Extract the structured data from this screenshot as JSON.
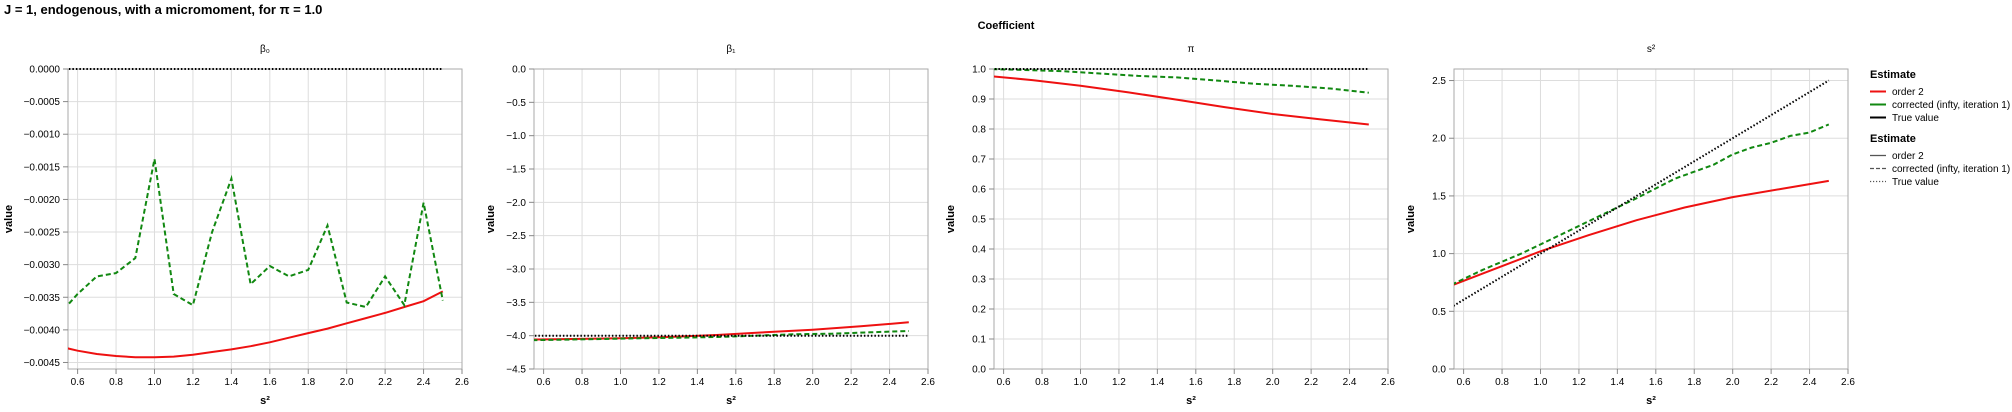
{
  "figure": {
    "title": "J = 1, endogenous, with a micromoment,  for π = 1.0",
    "column_header": "Coefficient"
  },
  "colors": {
    "order2": "#ee1111",
    "corrected": "#118811",
    "true": "#000000"
  },
  "legend": [
    {
      "title": "Estimate",
      "kind": "color",
      "entries": [
        {
          "label": "order 2",
          "color": "#ee1111"
        },
        {
          "label": "corrected (infty, iteration 1)",
          "color": "#118811"
        },
        {
          "label": "True value",
          "color": "#000000"
        }
      ]
    },
    {
      "title": "Estimate",
      "kind": "dash",
      "entries": [
        {
          "label": "order 2",
          "dash": "solid"
        },
        {
          "label": "corrected (infty, iteration 1)",
          "dash": "dashed"
        },
        {
          "label": "True value",
          "dash": "dotted"
        }
      ]
    }
  ],
  "chart_data": [
    {
      "type": "line",
      "title": "β₀",
      "xlabel": "s²",
      "ylabel": "value",
      "xlim": [
        0.55,
        2.6
      ],
      "ylim": [
        -0.0046,
        0.0
      ],
      "xticks": [
        0.6,
        0.8,
        1.0,
        1.2,
        1.4,
        1.6,
        1.8,
        2.0,
        2.2,
        2.4,
        2.6
      ],
      "xtick_labels": [
        "0.6",
        "0.8",
        "1.0",
        "1.2",
        "1.4",
        "1.6",
        "1.8",
        "2.0",
        "2.2",
        "2.4",
        "2.6"
      ],
      "yticks": [
        -0.0045,
        -0.004,
        -0.0035,
        -0.003,
        -0.0025,
        -0.002,
        -0.0015,
        -0.001,
        -0.0005,
        0.0
      ],
      "ytick_labels": [
        "−0.0045",
        "−0.0040",
        "−0.0035",
        "−0.0030",
        "−0.0025",
        "−0.0020",
        "−0.0015",
        "−0.0010",
        "−0.0005",
        "0.0000"
      ],
      "series": [
        {
          "name": "order 2",
          "color": "#ee1111",
          "dash": "solid",
          "x": [
            0.5,
            0.6,
            0.7,
            0.8,
            0.9,
            1.0,
            1.1,
            1.2,
            1.3,
            1.4,
            1.5,
            1.6,
            1.7,
            1.8,
            1.9,
            2.0,
            2.1,
            2.2,
            2.3,
            2.4,
            2.5
          ],
          "y": [
            -0.00425,
            -0.00432,
            -0.00437,
            -0.0044,
            -0.00442,
            -0.00442,
            -0.00441,
            -0.00438,
            -0.00434,
            -0.0043,
            -0.00425,
            -0.00419,
            -0.00412,
            -0.00405,
            -0.00398,
            -0.0039,
            -0.00382,
            -0.00374,
            -0.00365,
            -0.00356,
            -0.00341
          ]
        },
        {
          "name": "corrected (infty, iteration 1)",
          "color": "#118811",
          "dash": "dashed",
          "x": [
            0.5,
            0.6,
            0.7,
            0.8,
            0.9,
            1.0,
            1.1,
            1.2,
            1.3,
            1.4,
            1.5,
            1.6,
            1.7,
            1.8,
            1.9,
            2.0,
            2.1,
            2.2,
            2.3,
            2.4,
            2.5
          ],
          "y": [
            -0.00378,
            -0.00345,
            -0.00318,
            -0.00313,
            -0.0029,
            -0.00138,
            -0.00345,
            -0.00362,
            -0.0025,
            -0.00168,
            -0.0033,
            -0.00302,
            -0.00318,
            -0.00308,
            -0.0024,
            -0.00358,
            -0.00365,
            -0.00318,
            -0.00362,
            -0.00205,
            -0.00355
          ]
        },
        {
          "name": "True value",
          "color": "#000000",
          "dash": "dotted",
          "x": [
            0.5,
            2.5
          ],
          "y": [
            0.0,
            0.0
          ]
        }
      ]
    },
    {
      "type": "line",
      "title": "β₁",
      "xlabel": "s²",
      "ylabel": "value",
      "xlim": [
        0.55,
        2.6
      ],
      "ylim": [
        -4.5,
        0.0
      ],
      "xticks": [
        0.6,
        0.8,
        1.0,
        1.2,
        1.4,
        1.6,
        1.8,
        2.0,
        2.2,
        2.4,
        2.6
      ],
      "xtick_labels": [
        "0.6",
        "0.8",
        "1.0",
        "1.2",
        "1.4",
        "1.6",
        "1.8",
        "2.0",
        "2.2",
        "2.4",
        "2.6"
      ],
      "yticks": [
        -4.5,
        -4.0,
        -3.5,
        -3.0,
        -2.5,
        -2.0,
        -1.5,
        -1.0,
        -0.5,
        0.0
      ],
      "ytick_labels": [
        "−4.5",
        "−4.0",
        "−3.5",
        "−3.0",
        "−2.5",
        "−2.0",
        "−1.5",
        "−1.0",
        "−0.5",
        "0.0"
      ],
      "series": [
        {
          "name": "order 2",
          "color": "#ee1111",
          "dash": "solid",
          "x": [
            0.5,
            0.75,
            1.0,
            1.25,
            1.5,
            1.75,
            2.0,
            2.25,
            2.5
          ],
          "y": [
            -4.06,
            -4.05,
            -4.04,
            -4.02,
            -3.99,
            -3.95,
            -3.91,
            -3.86,
            -3.8
          ]
        },
        {
          "name": "corrected (infty, iteration 1)",
          "color": "#118811",
          "dash": "dashed",
          "x": [
            0.5,
            0.7,
            0.9,
            1.1,
            1.3,
            1.5,
            1.7,
            1.9,
            2.1,
            2.3,
            2.5
          ],
          "y": [
            -4.07,
            -4.06,
            -4.05,
            -4.04,
            -4.03,
            -4.02,
            -4.0,
            -3.98,
            -3.97,
            -3.95,
            -3.93
          ]
        },
        {
          "name": "True value",
          "color": "#000000",
          "dash": "dotted",
          "x": [
            0.5,
            2.5
          ],
          "y": [
            -4.0,
            -4.0
          ]
        }
      ]
    },
    {
      "type": "line",
      "title": "π",
      "xlabel": "s²",
      "ylabel": "value",
      "xlim": [
        0.55,
        2.6
      ],
      "ylim": [
        0.0,
        1.0
      ],
      "xticks": [
        0.6,
        0.8,
        1.0,
        1.2,
        1.4,
        1.6,
        1.8,
        2.0,
        2.2,
        2.4,
        2.6
      ],
      "xtick_labels": [
        "0.6",
        "0.8",
        "1.0",
        "1.2",
        "1.4",
        "1.6",
        "1.8",
        "2.0",
        "2.2",
        "2.4",
        "2.6"
      ],
      "yticks": [
        0.0,
        0.1,
        0.2,
        0.3,
        0.4,
        0.5,
        0.6,
        0.7,
        0.8,
        0.9,
        1.0
      ],
      "ytick_labels": [
        "0.0",
        "0.1",
        "0.2",
        "0.3",
        "0.4",
        "0.5",
        "0.6",
        "0.7",
        "0.8",
        "0.9",
        "1.0"
      ],
      "series": [
        {
          "name": "order 2",
          "color": "#ee1111",
          "dash": "solid",
          "x": [
            0.5,
            0.75,
            1.0,
            1.25,
            1.5,
            1.75,
            2.0,
            2.25,
            2.5
          ],
          "y": [
            0.978,
            0.963,
            0.944,
            0.922,
            0.898,
            0.873,
            0.85,
            0.832,
            0.815
          ]
        },
        {
          "name": "corrected (infty, iteration 1)",
          "color": "#118811",
          "dash": "dashed",
          "x": [
            0.5,
            0.7,
            0.9,
            1.1,
            1.3,
            1.5,
            1.7,
            1.9,
            2.1,
            2.3,
            2.5
          ],
          "y": [
            1.0,
            0.997,
            0.993,
            0.985,
            0.977,
            0.972,
            0.962,
            0.951,
            0.944,
            0.935,
            0.921
          ]
        },
        {
          "name": "True value",
          "color": "#000000",
          "dash": "dotted",
          "x": [
            0.5,
            2.5
          ],
          "y": [
            1.0,
            1.0
          ]
        }
      ]
    },
    {
      "type": "line",
      "title": "s²",
      "xlabel": "s²",
      "ylabel": "value",
      "xlim": [
        0.55,
        2.6
      ],
      "ylim": [
        0.0,
        2.6
      ],
      "xticks": [
        0.6,
        0.8,
        1.0,
        1.2,
        1.4,
        1.6,
        1.8,
        2.0,
        2.2,
        2.4,
        2.6
      ],
      "xtick_labels": [
        "0.6",
        "0.8",
        "1.0",
        "1.2",
        "1.4",
        "1.6",
        "1.8",
        "2.0",
        "2.2",
        "2.4",
        "2.6"
      ],
      "yticks": [
        0.0,
        0.5,
        1.0,
        1.5,
        2.0,
        2.5
      ],
      "ytick_labels": [
        "0.0",
        "0.5",
        "1.0",
        "1.5",
        "2.0",
        "2.5"
      ],
      "series": [
        {
          "name": "order 2",
          "color": "#ee1111",
          "dash": "solid",
          "x": [
            0.5,
            0.75,
            1.0,
            1.25,
            1.5,
            1.75,
            2.0,
            2.25,
            2.5
          ],
          "y": [
            0.7,
            0.86,
            1.02,
            1.16,
            1.29,
            1.4,
            1.49,
            1.56,
            1.63
          ]
        },
        {
          "name": "corrected (infty, iteration 1)",
          "color": "#118811",
          "dash": "dashed",
          "x": [
            0.5,
            0.7,
            0.9,
            1.1,
            1.3,
            1.5,
            1.7,
            1.9,
            2.0,
            2.1,
            2.2,
            2.3,
            2.4,
            2.5
          ],
          "y": [
            0.7,
            0.86,
            1.0,
            1.16,
            1.32,
            1.48,
            1.65,
            1.77,
            1.86,
            1.92,
            1.96,
            2.02,
            2.05,
            2.12
          ]
        },
        {
          "name": "True value",
          "color": "#000000",
          "dash": "dotted",
          "x": [
            0.5,
            2.5
          ],
          "y": [
            0.5,
            2.5
          ]
        }
      ]
    }
  ]
}
